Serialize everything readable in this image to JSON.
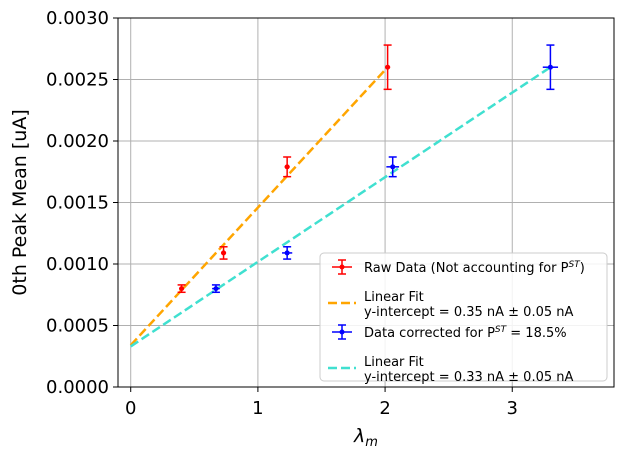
{
  "chart_data": {
    "type": "scatter",
    "xlabel": "λ",
    "xlabel_sub": "m",
    "ylabel": "0th Peak Mean [uA]",
    "xlim": [
      -0.1,
      3.8
    ],
    "ylim": [
      0,
      0.003
    ],
    "xticks": [
      0,
      1,
      2,
      3
    ],
    "xtick_labels": [
      "0",
      "1",
      "2",
      "3"
    ],
    "yticks": [
      0,
      0.0005,
      0.001,
      0.0015,
      0.002,
      0.0025,
      0.003
    ],
    "ytick_labels": [
      "0.0000",
      "0.0005",
      "0.0010",
      "0.0015",
      "0.0020",
      "0.0025",
      "0.0030"
    ],
    "grid": true,
    "legend_position": "lower-right",
    "series": [
      {
        "name": "Raw Data (Not accounting for P_ST)",
        "legend_text": "Raw Data (Not accounting for P",
        "legend_sub": "ST",
        "legend_suffix": ")",
        "kind": "errorbar",
        "color": "#ff0000",
        "points": [
          {
            "x": 0.4,
            "y": 0.0008,
            "yerr": 3e-05,
            "xerr": 0.02
          },
          {
            "x": 0.73,
            "y": 0.00109,
            "yerr": 5e-05,
            "xerr": 0.02
          },
          {
            "x": 1.23,
            "y": 0.00179,
            "yerr": 8e-05,
            "xerr": 0.02
          },
          {
            "x": 2.02,
            "y": 0.0026,
            "yerr": 0.00018,
            "xerr": 0.02
          }
        ]
      },
      {
        "name": "Linear Fit",
        "legend_line1": "Linear Fit",
        "legend_line2": "y-intercept = 0.35 nA ± 0.05 nA",
        "kind": "fit",
        "color": "#ffa500",
        "x": [
          0,
          2.02
        ],
        "y": [
          0.00034,
          0.0026
        ]
      },
      {
        "name": "Data corrected for P_ST = 18.5%",
        "legend_text": "Data corrected for P",
        "legend_sub": "ST",
        "legend_suffix": " = 18.5%",
        "kind": "errorbar",
        "color": "#0000ff",
        "points": [
          {
            "x": 0.67,
            "y": 0.0008,
            "yerr": 3e-05,
            "xerr": 0.03
          },
          {
            "x": 1.23,
            "y": 0.00109,
            "yerr": 5e-05,
            "xerr": 0.04
          },
          {
            "x": 2.06,
            "y": 0.00179,
            "yerr": 8e-05,
            "xerr": 0.05
          },
          {
            "x": 3.3,
            "y": 0.0026,
            "yerr": 0.00018,
            "xerr": 0.06
          }
        ]
      },
      {
        "name": "Linear Fit",
        "legend_line1": "Linear Fit",
        "legend_line2": "y-intercept = 0.33 nA ± 0.05 nA",
        "kind": "fit",
        "color": "#40e0d0",
        "x": [
          0,
          3.3
        ],
        "y": [
          0.00033,
          0.0026
        ]
      }
    ]
  }
}
